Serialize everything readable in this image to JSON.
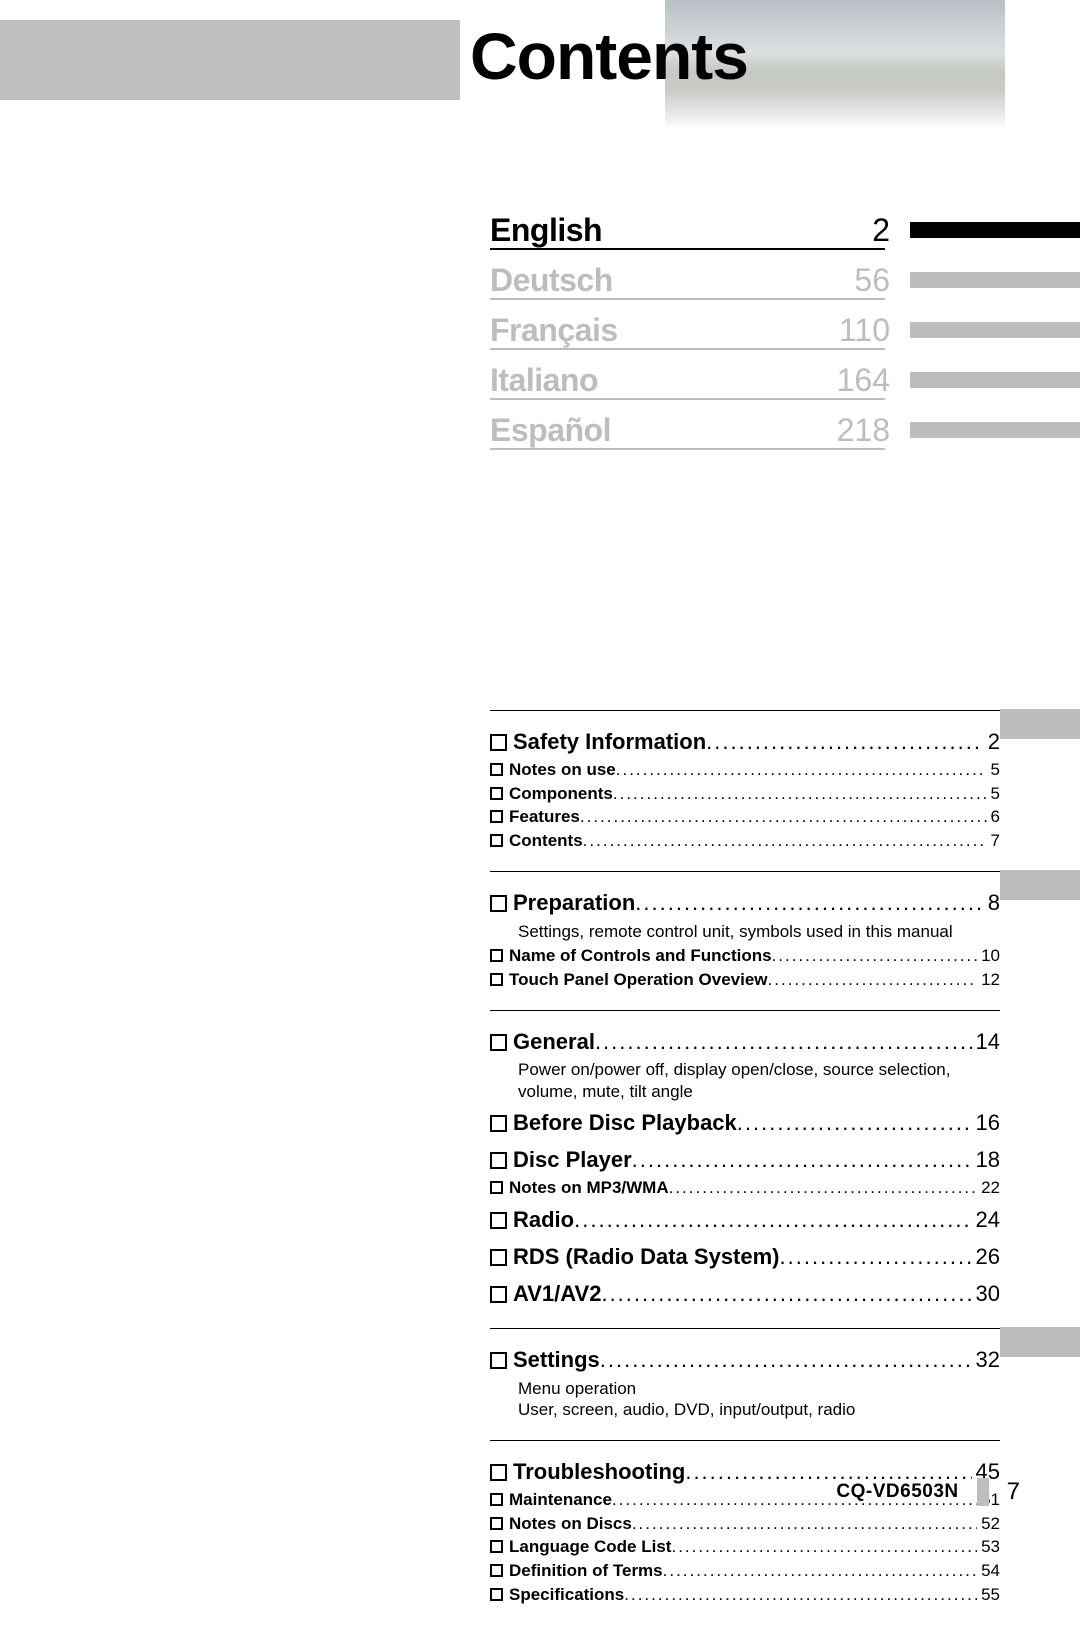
{
  "title": "Contents",
  "languages": [
    {
      "label": "English",
      "page": "2",
      "active": true
    },
    {
      "label": "Deutsch",
      "page": "56",
      "active": false
    },
    {
      "label": "Français",
      "page": "110",
      "active": false
    },
    {
      "label": "Italiano",
      "page": "164",
      "active": false
    },
    {
      "label": "Español",
      "page": "218",
      "active": false
    }
  ],
  "sections": [
    {
      "tab": true,
      "items": [
        {
          "label": "Safety Information",
          "page": "2",
          "major": true
        },
        {
          "label": "Notes on use",
          "page": "5",
          "major": false
        },
        {
          "label": "Components",
          "page": "5",
          "major": false
        },
        {
          "label": "Features",
          "page": "6",
          "major": false
        },
        {
          "label": "Contents",
          "page": "7",
          "major": false
        }
      ]
    },
    {
      "tab": true,
      "items": [
        {
          "label": "Preparation",
          "page": "8",
          "major": true,
          "desc": "Settings, remote control unit, symbols used in this manual"
        },
        {
          "label": "Name of Controls and Functions",
          "page": "10",
          "major": false
        },
        {
          "label": "Touch Panel Operation Oveview",
          "page": "12",
          "major": false
        }
      ]
    },
    {
      "tab": false,
      "items": [
        {
          "label": "General",
          "page": "14",
          "major": true,
          "desc": "Power on/power off, display open/close, source selection, volume, mute, tilt angle"
        },
        {
          "label": "Before Disc Playback",
          "page": "16",
          "major": true
        },
        {
          "label": "Disc Player",
          "page": "18",
          "major": true
        },
        {
          "label": "Notes on MP3/WMA",
          "page": "22",
          "major": false
        },
        {
          "label": "Radio",
          "page": "24",
          "major": true
        },
        {
          "label": "RDS (Radio Data System)",
          "page": "26",
          "major": true
        },
        {
          "label": "AV1/AV2",
          "page": "30",
          "major": true
        }
      ]
    },
    {
      "tab": true,
      "items": [
        {
          "label": "Settings",
          "page": "32",
          "major": true,
          "desc": "Menu operation\nUser, screen, audio, DVD, input/output, radio"
        }
      ]
    },
    {
      "tab": false,
      "items": [
        {
          "label": "Troubleshooting",
          "page": "45",
          "major": true
        },
        {
          "label": "Maintenance",
          "page": "51",
          "major": false
        },
        {
          "label": "Notes on Discs",
          "page": "52",
          "major": false
        },
        {
          "label": "Language Code List",
          "page": "53",
          "major": false
        },
        {
          "label": "Definition of Terms",
          "page": "54",
          "major": false
        },
        {
          "label": "Specifications",
          "page": "55",
          "major": false
        }
      ]
    }
  ],
  "footer": {
    "model": "CQ-VD6503N",
    "page": "7"
  },
  "colors": {
    "gray": "#bdbdbd",
    "text": "#000000",
    "bg": "#ffffff"
  }
}
